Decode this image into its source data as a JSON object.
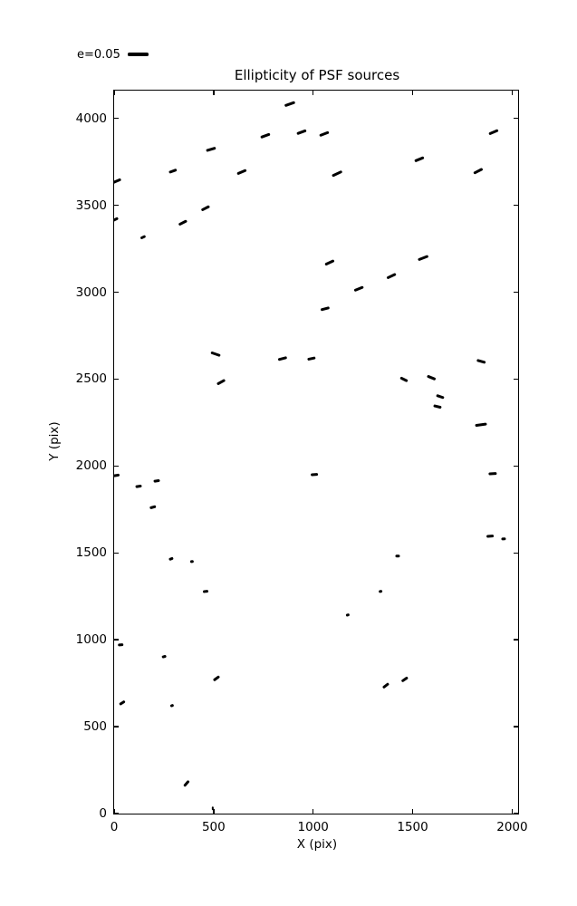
{
  "figure": {
    "background": "#ffffff",
    "foreground": "#000000"
  },
  "chart_data": {
    "type": "quiver",
    "title": "Ellipticity of PSF sources",
    "xlabel": "X (pix)",
    "ylabel": "Y (pix)",
    "xlim": [
      0,
      2030
    ],
    "ylim": [
      0,
      4160
    ],
    "xticks": [
      0,
      500,
      1000,
      1500,
      2000
    ],
    "yticks": [
      0,
      500,
      1000,
      1500,
      2000,
      2500,
      3000,
      3500,
      4000
    ],
    "grid": false,
    "legend": {
      "label": "e=0.05",
      "e_scale": 0.05,
      "position": "above-axes-left"
    },
    "whisker_color": "#000000",
    "whiskers": [
      {
        "x": 881,
        "y": 4080,
        "e": 0.026,
        "theta": 19
      },
      {
        "x": 759,
        "y": 3901,
        "e": 0.024,
        "theta": 20
      },
      {
        "x": 941,
        "y": 3922,
        "e": 0.024,
        "theta": 20
      },
      {
        "x": 1055,
        "y": 3911,
        "e": 0.024,
        "theta": 21
      },
      {
        "x": 1905,
        "y": 3922,
        "e": 0.024,
        "theta": 23
      },
      {
        "x": 486,
        "y": 3823,
        "e": 0.024,
        "theta": 17
      },
      {
        "x": 1536,
        "y": 3763,
        "e": 0.024,
        "theta": 22
      },
      {
        "x": 295,
        "y": 3695,
        "e": 0.02,
        "theta": 20
      },
      {
        "x": 641,
        "y": 3690,
        "e": 0.024,
        "theta": 23
      },
      {
        "x": 1121,
        "y": 3679,
        "e": 0.025,
        "theta": 25
      },
      {
        "x": 1830,
        "y": 3695,
        "e": 0.024,
        "theta": 27
      },
      {
        "x": 15,
        "y": 3640,
        "e": 0.022,
        "theta": 23
      },
      {
        "x": 0,
        "y": 3417,
        "e": 0.022,
        "theta": 25
      },
      {
        "x": 459,
        "y": 3484,
        "e": 0.022,
        "theta": 27
      },
      {
        "x": 345,
        "y": 3401,
        "e": 0.022,
        "theta": 27
      },
      {
        "x": 145,
        "y": 3315,
        "e": 0.013,
        "theta": 25
      },
      {
        "x": 1082,
        "y": 3170,
        "e": 0.024,
        "theta": 25
      },
      {
        "x": 1550,
        "y": 3198,
        "e": 0.025,
        "theta": 21
      },
      {
        "x": 1391,
        "y": 3089,
        "e": 0.023,
        "theta": 25
      },
      {
        "x": 1227,
        "y": 3019,
        "e": 0.023,
        "theta": 22
      },
      {
        "x": 1062,
        "y": 2906,
        "e": 0.022,
        "theta": 15
      },
      {
        "x": 511,
        "y": 2641,
        "e": 0.024,
        "theta": -19
      },
      {
        "x": 845,
        "y": 2617,
        "e": 0.022,
        "theta": 15
      },
      {
        "x": 991,
        "y": 2615,
        "e": 0.02,
        "theta": 12
      },
      {
        "x": 539,
        "y": 2479,
        "e": 0.021,
        "theta": 29
      },
      {
        "x": 1458,
        "y": 2495,
        "e": 0.02,
        "theta": -26
      },
      {
        "x": 1595,
        "y": 2508,
        "e": 0.021,
        "theta": -22
      },
      {
        "x": 1844,
        "y": 2602,
        "e": 0.021,
        "theta": -16
      },
      {
        "x": 1638,
        "y": 2396,
        "e": 0.02,
        "theta": -19
      },
      {
        "x": 1623,
        "y": 2341,
        "e": 0.02,
        "theta": -14
      },
      {
        "x": 1845,
        "y": 2237,
        "e": 0.028,
        "theta": 8
      },
      {
        "x": 10,
        "y": 1945,
        "e": 0.017,
        "theta": 10
      },
      {
        "x": 123,
        "y": 1880,
        "e": 0.015,
        "theta": 8
      },
      {
        "x": 216,
        "y": 1911,
        "e": 0.015,
        "theta": 8
      },
      {
        "x": 195,
        "y": 1763,
        "e": 0.016,
        "theta": 15
      },
      {
        "x": 1007,
        "y": 1950,
        "e": 0.017,
        "theta": 5
      },
      {
        "x": 1903,
        "y": 1953,
        "e": 0.02,
        "theta": 3
      },
      {
        "x": 1888,
        "y": 1594,
        "e": 0.017,
        "theta": 5
      },
      {
        "x": 1959,
        "y": 1578,
        "e": 0.011,
        "theta": 5
      },
      {
        "x": 286,
        "y": 1464,
        "e": 0.011,
        "theta": 20
      },
      {
        "x": 391,
        "y": 1448,
        "e": 0.009,
        "theta": 8
      },
      {
        "x": 458,
        "y": 1279,
        "e": 0.013,
        "theta": 5
      },
      {
        "x": 1423,
        "y": 1481,
        "e": 0.011,
        "theta": 0
      },
      {
        "x": 1336,
        "y": 1279,
        "e": 0.008,
        "theta": 10
      },
      {
        "x": 1173,
        "y": 1144,
        "e": 0.009,
        "theta": 15
      },
      {
        "x": 32,
        "y": 968,
        "e": 0.012,
        "theta": 5
      },
      {
        "x": 250,
        "y": 901,
        "e": 0.01,
        "theta": 15
      },
      {
        "x": 514,
        "y": 779,
        "e": 0.017,
        "theta": 36
      },
      {
        "x": 1364,
        "y": 737,
        "e": 0.017,
        "theta": 38
      },
      {
        "x": 1459,
        "y": 774,
        "e": 0.018,
        "theta": 34
      },
      {
        "x": 41,
        "y": 638,
        "e": 0.015,
        "theta": 33
      },
      {
        "x": 291,
        "y": 622,
        "e": 0.009,
        "theta": 20
      },
      {
        "x": 364,
        "y": 172,
        "e": 0.017,
        "theta": 49
      },
      {
        "x": 495,
        "y": 30,
        "e": 0.005,
        "theta": 0
      }
    ]
  }
}
